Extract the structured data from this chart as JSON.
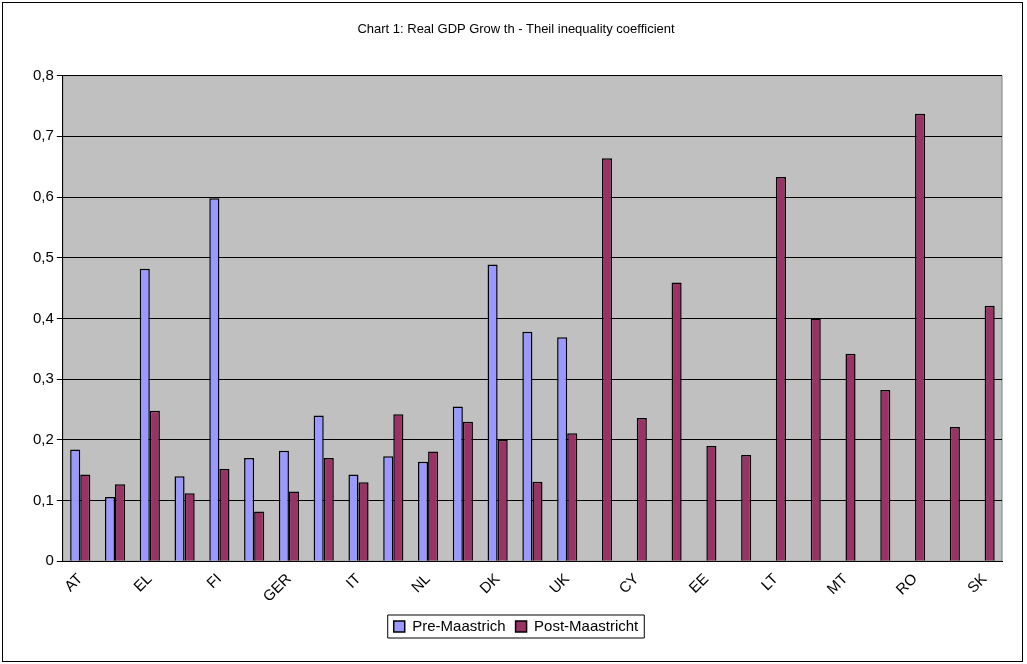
{
  "chart_data": {
    "type": "bar",
    "title": "Chart 1: Real GDP Grow th - Theil inequality coefficient",
    "categories": [
      "AT",
      null,
      "EL",
      null,
      "FI",
      null,
      "GER",
      null,
      "IT",
      null,
      "NL",
      null,
      "DK",
      null,
      "UK",
      null,
      "CY",
      null,
      "EE",
      null,
      "LT",
      null,
      "MT",
      null,
      "RO",
      null,
      "SK"
    ],
    "series": [
      {
        "name": "Pre-Maastrich",
        "color": "#9999ff",
        "values": [
          0.184,
          0.106,
          0.482,
          0.14,
          0.598,
          0.17,
          0.182,
          0.24,
          0.143,
          0.173,
          0.164,
          0.255,
          0.489,
          0.378,
          0.369,
          null,
          null,
          null,
          null,
          null,
          null,
          null,
          null,
          null,
          null,
          null,
          null
        ]
      },
      {
        "name": "Post-Maastricht",
        "color": "#993366",
        "values": [
          0.143,
          0.127,
          0.248,
          0.112,
          0.152,
          0.082,
          0.115,
          0.17,
          0.13,
          0.242,
          0.181,
          0.23,
          0.2,
          0.131,
          0.211,
          0.664,
          0.236,
          0.459,
          0.19,
          0.175,
          0.633,
          0.4,
          0.342,
          0.282,
          0.737,
          0.221,
          0.421
        ]
      }
    ],
    "ylim": [
      0,
      0.8
    ],
    "yticks": [
      0,
      {
        "value": 0.1,
        "label": "0,1"
      },
      {
        "value": 0.2,
        "label": "0,2"
      },
      {
        "value": 0.3,
        "label": "0,3"
      },
      {
        "value": 0.4,
        "label": "0,4"
      },
      {
        "value": 0.5,
        "label": "0,5"
      },
      {
        "value": 0.6,
        "label": "0,6"
      },
      {
        "value": 0.7,
        "label": "0,7"
      },
      {
        "value": 0.8,
        "label": "0,8"
      }
    ],
    "grid": "y",
    "legend": "bottom"
  }
}
